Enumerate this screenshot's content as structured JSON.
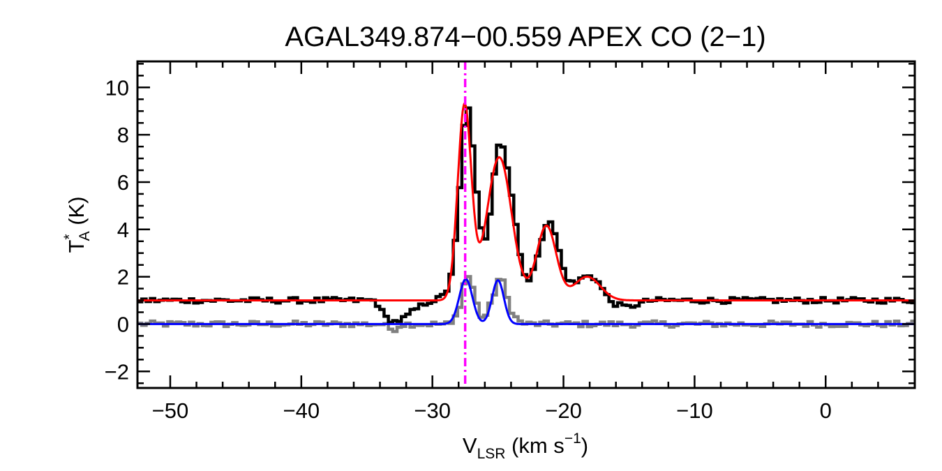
{
  "chart_data": {
    "type": "line",
    "title": "AGAL349.874−00.559  APEX CO (2−1)",
    "xlabel": {
      "main": "V",
      "sub": "LSR",
      "rest": " (km s",
      "sup": "−1",
      "end": ")"
    },
    "ylabel": {
      "main": "T",
      "sup": "*",
      "sub": "A",
      "rest": " (K)"
    },
    "xlim": [
      -52.5,
      6.8
    ],
    "ylim": [
      -2.7,
      11.1
    ],
    "xticks": [
      -50,
      -40,
      -30,
      -20,
      -10,
      0
    ],
    "xtick_labels": [
      "−50",
      "−40",
      "−30",
      "−20",
      "−10",
      "0"
    ],
    "yticks": [
      -2,
      0,
      2,
      4,
      6,
      8,
      10
    ],
    "ytick_labels": [
      "−2",
      "0",
      "2",
      "4",
      "6",
      "8",
      "10"
    ],
    "vline_x": -27.5,
    "channel_width": 0.33,
    "series": [
      {
        "role": "spectrum-offset",
        "color": "#000000",
        "baseline": 1.0,
        "noise": 0.12,
        "points": [
          [
            -52.5,
            1.0
          ],
          [
            -34.5,
            1.0
          ],
          [
            -33.8,
            0.3
          ],
          [
            -33,
            0.1
          ],
          [
            -32.3,
            0.25
          ],
          [
            -31.5,
            0.6
          ],
          [
            -30.5,
            0.95
          ],
          [
            -29.5,
            1.1
          ],
          [
            -29,
            1.5
          ],
          [
            -28.6,
            2.5
          ],
          [
            -28.2,
            4.5
          ],
          [
            -27.9,
            7.5
          ],
          [
            -27.6,
            9.2
          ],
          [
            -27.3,
            9.0
          ],
          [
            -27,
            7.0
          ],
          [
            -26.6,
            4.5
          ],
          [
            -26.2,
            3.3
          ],
          [
            -25.9,
            4.0
          ],
          [
            -25.5,
            6.2
          ],
          [
            -25.1,
            7.7
          ],
          [
            -24.8,
            7.6
          ],
          [
            -24.4,
            6.5
          ],
          [
            -24,
            5.0
          ],
          [
            -23.6,
            3.5
          ],
          [
            -23.2,
            2.2
          ],
          [
            -22.8,
            1.8
          ],
          [
            -22.4,
            2.3
          ],
          [
            -22,
            3.3
          ],
          [
            -21.6,
            4.1
          ],
          [
            -21.3,
            4.4
          ],
          [
            -20.9,
            4.0
          ],
          [
            -20.5,
            3.1
          ],
          [
            -20.1,
            2.2
          ],
          [
            -19.7,
            1.8
          ],
          [
            -19.3,
            1.7
          ],
          [
            -18.9,
            1.9
          ],
          [
            -18.5,
            2.0
          ],
          [
            -18.1,
            2.1
          ],
          [
            -17.7,
            1.9
          ],
          [
            -17.3,
            1.6
          ],
          [
            -16.9,
            1.2
          ],
          [
            -16.5,
            0.95
          ],
          [
            -16,
            0.8
          ],
          [
            -15.3,
            0.7
          ],
          [
            -14.5,
            0.85
          ],
          [
            -13.5,
            1.0
          ],
          [
            6.8,
            1.0
          ]
        ]
      },
      {
        "role": "spectrum-residual",
        "color": "#808080",
        "baseline": 0.0,
        "noise": 0.13,
        "points": [
          [
            -52.5,
            0
          ],
          [
            -34,
            0
          ],
          [
            -33.2,
            -0.25
          ],
          [
            -32.5,
            0
          ],
          [
            -28.7,
            0
          ],
          [
            -28.2,
            0.5
          ],
          [
            -27.8,
            1.6
          ],
          [
            -27.5,
            2.1
          ],
          [
            -27.2,
            1.8
          ],
          [
            -26.8,
            0.9
          ],
          [
            -26.4,
            0.3
          ],
          [
            -26,
            0.4
          ],
          [
            -25.5,
            1.2
          ],
          [
            -25.1,
            1.9
          ],
          [
            -24.8,
            1.8
          ],
          [
            -24.4,
            1.0
          ],
          [
            -24,
            0.4
          ],
          [
            -23.5,
            0.1
          ],
          [
            -23,
            0
          ],
          [
            6.8,
            0
          ]
        ]
      },
      {
        "role": "fit-red",
        "color": "#ff0000",
        "baseline": 1.0,
        "gaussians": [
          [
            8.2,
            -27.55,
            0.52
          ],
          [
            6.05,
            -24.9,
            0.95
          ],
          [
            3.15,
            -21.3,
            0.75
          ],
          [
            1.0,
            -18.2,
            1.0
          ]
        ]
      },
      {
        "role": "fit-blue",
        "color": "#0000ff",
        "baseline": 0.0,
        "gaussians": [
          [
            1.9,
            -27.45,
            0.5
          ],
          [
            1.85,
            -25.0,
            0.45
          ]
        ]
      }
    ],
    "vline_color": "#ff00ff"
  }
}
